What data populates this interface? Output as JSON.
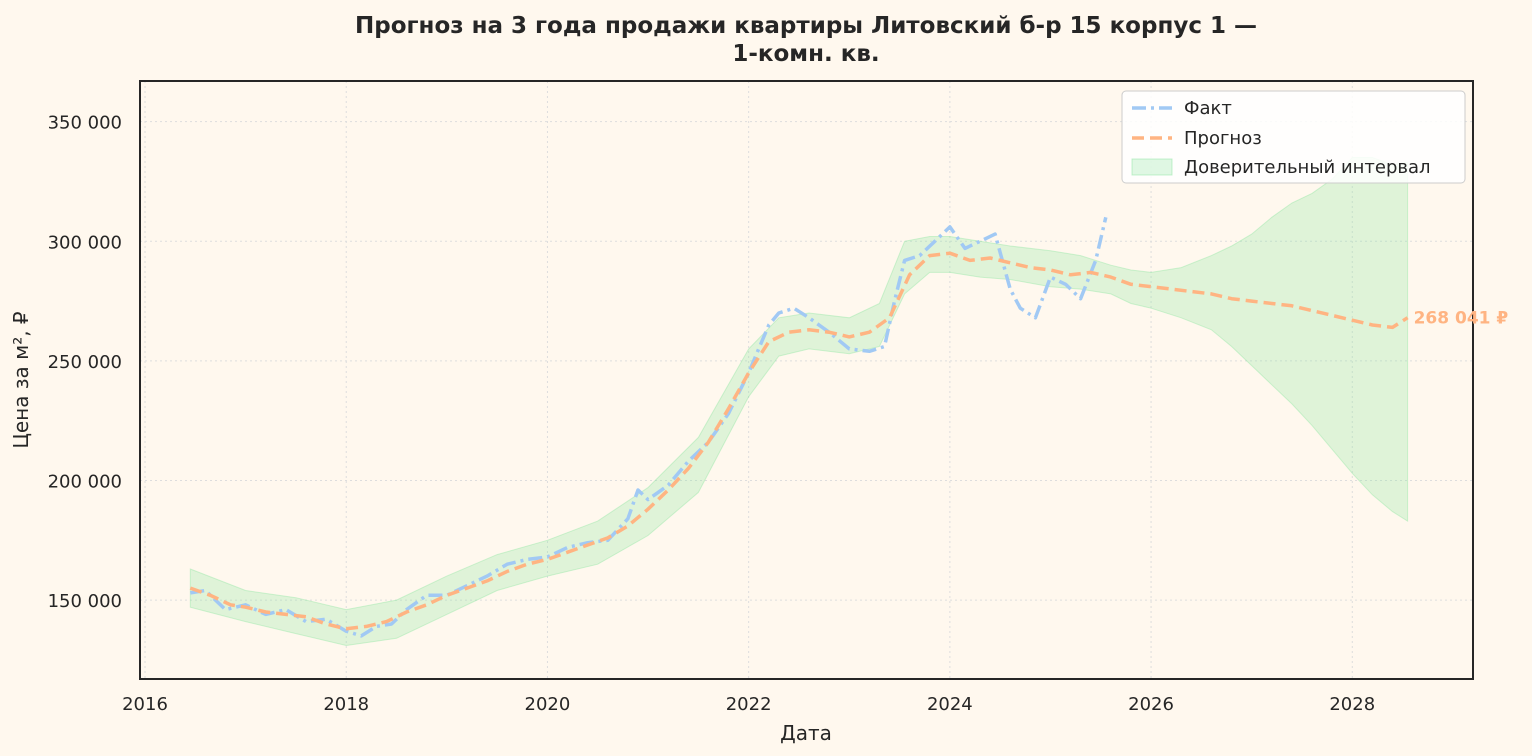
{
  "colors": {
    "background": "#fff8ee",
    "fact": "#a1c9f4",
    "forecast": "#ffb482",
    "interval": "#8de5a1",
    "grid": "#dddddd",
    "frame": "#262626"
  },
  "chart_data": {
    "type": "line",
    "title_lines": [
      "Прогноз на 3 года продажи квартиры  Литовский б-р 15 корпус 1 —",
      "1-комн. кв."
    ],
    "xlabel": "Дата",
    "ylabel": "Цена за м², ₽",
    "xlim": [
      2015.95,
      2029.2
    ],
    "ylim": [
      117000,
      367000
    ],
    "x_ticks": [
      2016,
      2018,
      2020,
      2022,
      2024,
      2026,
      2028
    ],
    "x_tick_labels": [
      "2016",
      "2018",
      "2020",
      "2022",
      "2024",
      "2026",
      "2028"
    ],
    "y_ticks": [
      150000,
      200000,
      250000,
      300000,
      350000
    ],
    "y_tick_labels": [
      "150 000",
      "200 000",
      "250 000",
      "300 000",
      "350 000"
    ],
    "grid": true,
    "legend_position": "top-right",
    "legend": [
      "Факт",
      "Прогноз",
      "Доверительный интервал"
    ],
    "end_label": "268 041 ₽",
    "series": [
      {
        "name": "Факт",
        "style": "dashdot",
        "x": [
          2016.45,
          2016.6,
          2016.8,
          2017.0,
          2017.2,
          2017.4,
          2017.6,
          2017.8,
          2018.0,
          2018.15,
          2018.3,
          2018.45,
          2018.6,
          2018.8,
          2019.0,
          2019.2,
          2019.4,
          2019.6,
          2019.8,
          2020.0,
          2020.2,
          2020.4,
          2020.6,
          2020.8,
          2020.9,
          2021.0,
          2021.2,
          2021.4,
          2021.6,
          2021.8,
          2022.0,
          2022.1,
          2022.2,
          2022.3,
          2022.45,
          2022.6,
          2022.8,
          2023.0,
          2023.2,
          2023.35,
          2023.45,
          2023.55,
          2023.7,
          2023.85,
          2024.0,
          2024.15,
          2024.3,
          2024.45,
          2024.6,
          2024.7,
          2024.85,
          2025.0,
          2025.15,
          2025.3,
          2025.45,
          2025.55
        ],
        "values": [
          153000,
          154000,
          146000,
          148000,
          144000,
          146000,
          141000,
          142000,
          137000,
          135000,
          139000,
          140000,
          146000,
          152000,
          152000,
          156000,
          160000,
          165000,
          167000,
          168000,
          172000,
          174000,
          175000,
          184000,
          196000,
          192000,
          198000,
          208000,
          216000,
          228000,
          245000,
          255000,
          265000,
          270000,
          272000,
          268000,
          262000,
          255000,
          254000,
          256000,
          275000,
          292000,
          294000,
          300000,
          306000,
          297000,
          300000,
          303000,
          280000,
          272000,
          268000,
          285000,
          282000,
          276000,
          292000,
          310000
        ]
      },
      {
        "name": "Прогноз",
        "style": "dashed",
        "x": [
          2016.45,
          2016.65,
          2016.85,
          2017.0,
          2017.2,
          2017.4,
          2017.6,
          2017.8,
          2018.0,
          2018.2,
          2018.4,
          2018.6,
          2018.8,
          2019.0,
          2019.2,
          2019.4,
          2019.6,
          2019.8,
          2020.0,
          2020.2,
          2020.4,
          2020.6,
          2020.8,
          2021.0,
          2021.2,
          2021.4,
          2021.6,
          2021.8,
          2022.0,
          2022.2,
          2022.4,
          2022.6,
          2022.8,
          2023.0,
          2023.2,
          2023.4,
          2023.6,
          2023.8,
          2024.0,
          2024.2,
          2024.4,
          2024.6,
          2024.8,
          2025.0,
          2025.2,
          2025.4,
          2025.6,
          2025.8,
          2026.0,
          2026.2,
          2026.4,
          2026.6,
          2026.8,
          2027.0,
          2027.2,
          2027.4,
          2027.6,
          2027.8,
          2028.0,
          2028.2,
          2028.4,
          2028.55
        ],
        "values": [
          155000,
          152000,
          148000,
          147000,
          145000,
          144000,
          143000,
          140000,
          138000,
          139000,
          141000,
          145000,
          148000,
          152000,
          155000,
          158000,
          162000,
          165000,
          167000,
          170000,
          173000,
          176000,
          181000,
          188000,
          196000,
          205000,
          216000,
          230000,
          245000,
          258000,
          262000,
          263000,
          262000,
          260000,
          262000,
          268000,
          286000,
          294000,
          295000,
          292000,
          293000,
          291000,
          289000,
          288000,
          286000,
          287000,
          285000,
          282000,
          281000,
          280000,
          279000,
          278000,
          276000,
          275000,
          274000,
          273000,
          271000,
          269000,
          267000,
          265000,
          264000,
          268041
        ]
      },
      {
        "name": "Доверительный интервал",
        "style": "band",
        "x": [
          2016.45,
          2017.0,
          2017.5,
          2018.0,
          2018.5,
          2019.0,
          2019.5,
          2020.0,
          2020.5,
          2021.0,
          2021.5,
          2022.0,
          2022.3,
          2022.6,
          2023.0,
          2023.3,
          2023.55,
          2023.8,
          2024.0,
          2024.3,
          2024.6,
          2025.0,
          2025.3,
          2025.6,
          2025.8,
          2026.0,
          2026.3,
          2026.6,
          2026.8,
          2027.0,
          2027.2,
          2027.4,
          2027.6,
          2027.8,
          2028.0,
          2028.2,
          2028.4,
          2028.55
        ],
        "lower": [
          147000,
          141000,
          136000,
          131000,
          134000,
          144000,
          154000,
          160000,
          165000,
          177000,
          195000,
          235000,
          252000,
          255000,
          253000,
          256000,
          278000,
          287000,
          287000,
          285000,
          284000,
          281000,
          280000,
          278000,
          274000,
          272000,
          268000,
          263000,
          256000,
          248000,
          240000,
          232000,
          223000,
          213000,
          203000,
          194000,
          187000,
          183000
        ],
        "upper": [
          163000,
          154000,
          151000,
          146000,
          150000,
          160000,
          169000,
          175000,
          183000,
          197000,
          218000,
          255000,
          268000,
          270000,
          268000,
          274000,
          300000,
          302000,
          302000,
          300000,
          298000,
          296000,
          294000,
          290000,
          288000,
          287000,
          289000,
          294000,
          298000,
          303000,
          310000,
          316000,
          320000,
          326000,
          335000,
          335000,
          332000,
          333000
        ]
      }
    ]
  }
}
